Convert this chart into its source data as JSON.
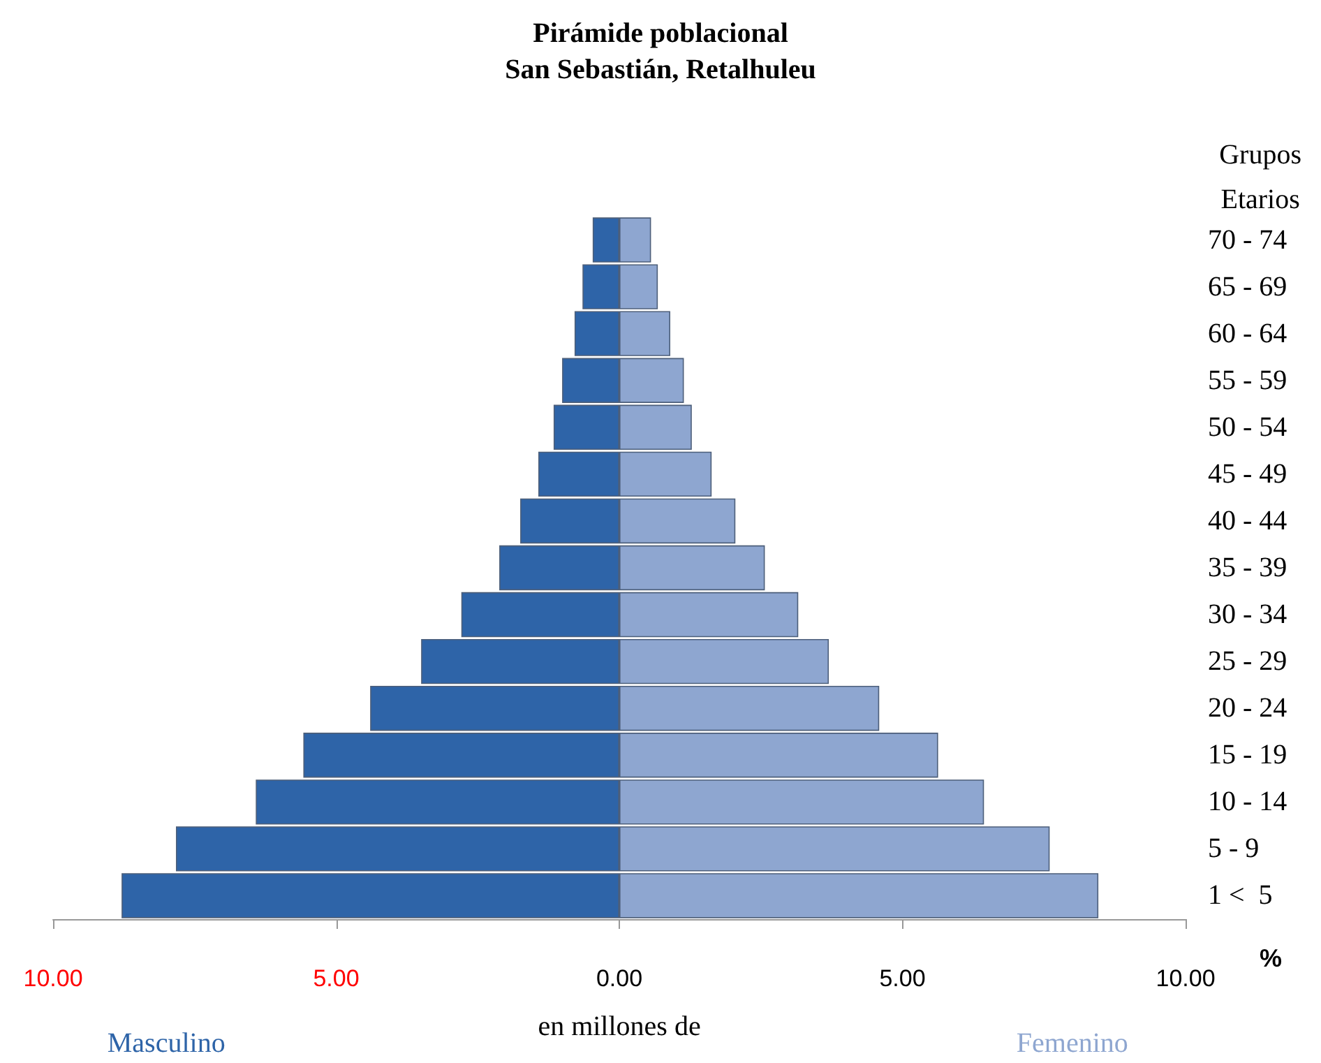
{
  "chart_data": {
    "type": "bar",
    "orientation": "horizontal",
    "title": "Pirámide poblacional\nSan Sebastián, Retalhuleu",
    "ylabel": "Grupos\nEtarios",
    "xlabel": "en millones de",
    "annotations": [
      "%"
    ],
    "categories": [
      "70 - 74",
      "65 - 69",
      "60 - 64",
      "55 - 59",
      "50 - 54",
      "45 - 49",
      "40 - 44",
      "35 - 39",
      "30 - 34",
      "25 - 29",
      "20 - 24",
      "15 - 19",
      "10 - 14",
      "5 - 9",
      "1 <  5"
    ],
    "series": [
      {
        "name": "Masculino",
        "color": "#2e64a8",
        "values": [
          -0.47,
          -0.65,
          -0.79,
          -1.01,
          -1.16,
          -1.43,
          -1.75,
          -2.12,
          -2.79,
          -3.5,
          -4.4,
          -5.58,
          -6.42,
          -7.83,
          -8.79
        ]
      },
      {
        "name": "Femenino",
        "color": "#8ea6d0",
        "values": [
          0.56,
          0.68,
          0.9,
          1.14,
          1.28,
          1.63,
          2.05,
          2.57,
          3.16,
          3.7,
          4.59,
          5.63,
          6.44,
          7.6,
          8.46
        ]
      }
    ],
    "xlim": [
      -10,
      10
    ],
    "xticks": [
      {
        "value": -10,
        "label": "10.00"
      },
      {
        "value": -5,
        "label": "5.00"
      },
      {
        "value": 0,
        "label": "0.00"
      },
      {
        "value": 5,
        "label": "5.00"
      },
      {
        "value": 10,
        "label": "10.00"
      }
    ],
    "stacked": true,
    "grid": false,
    "legend": false
  }
}
